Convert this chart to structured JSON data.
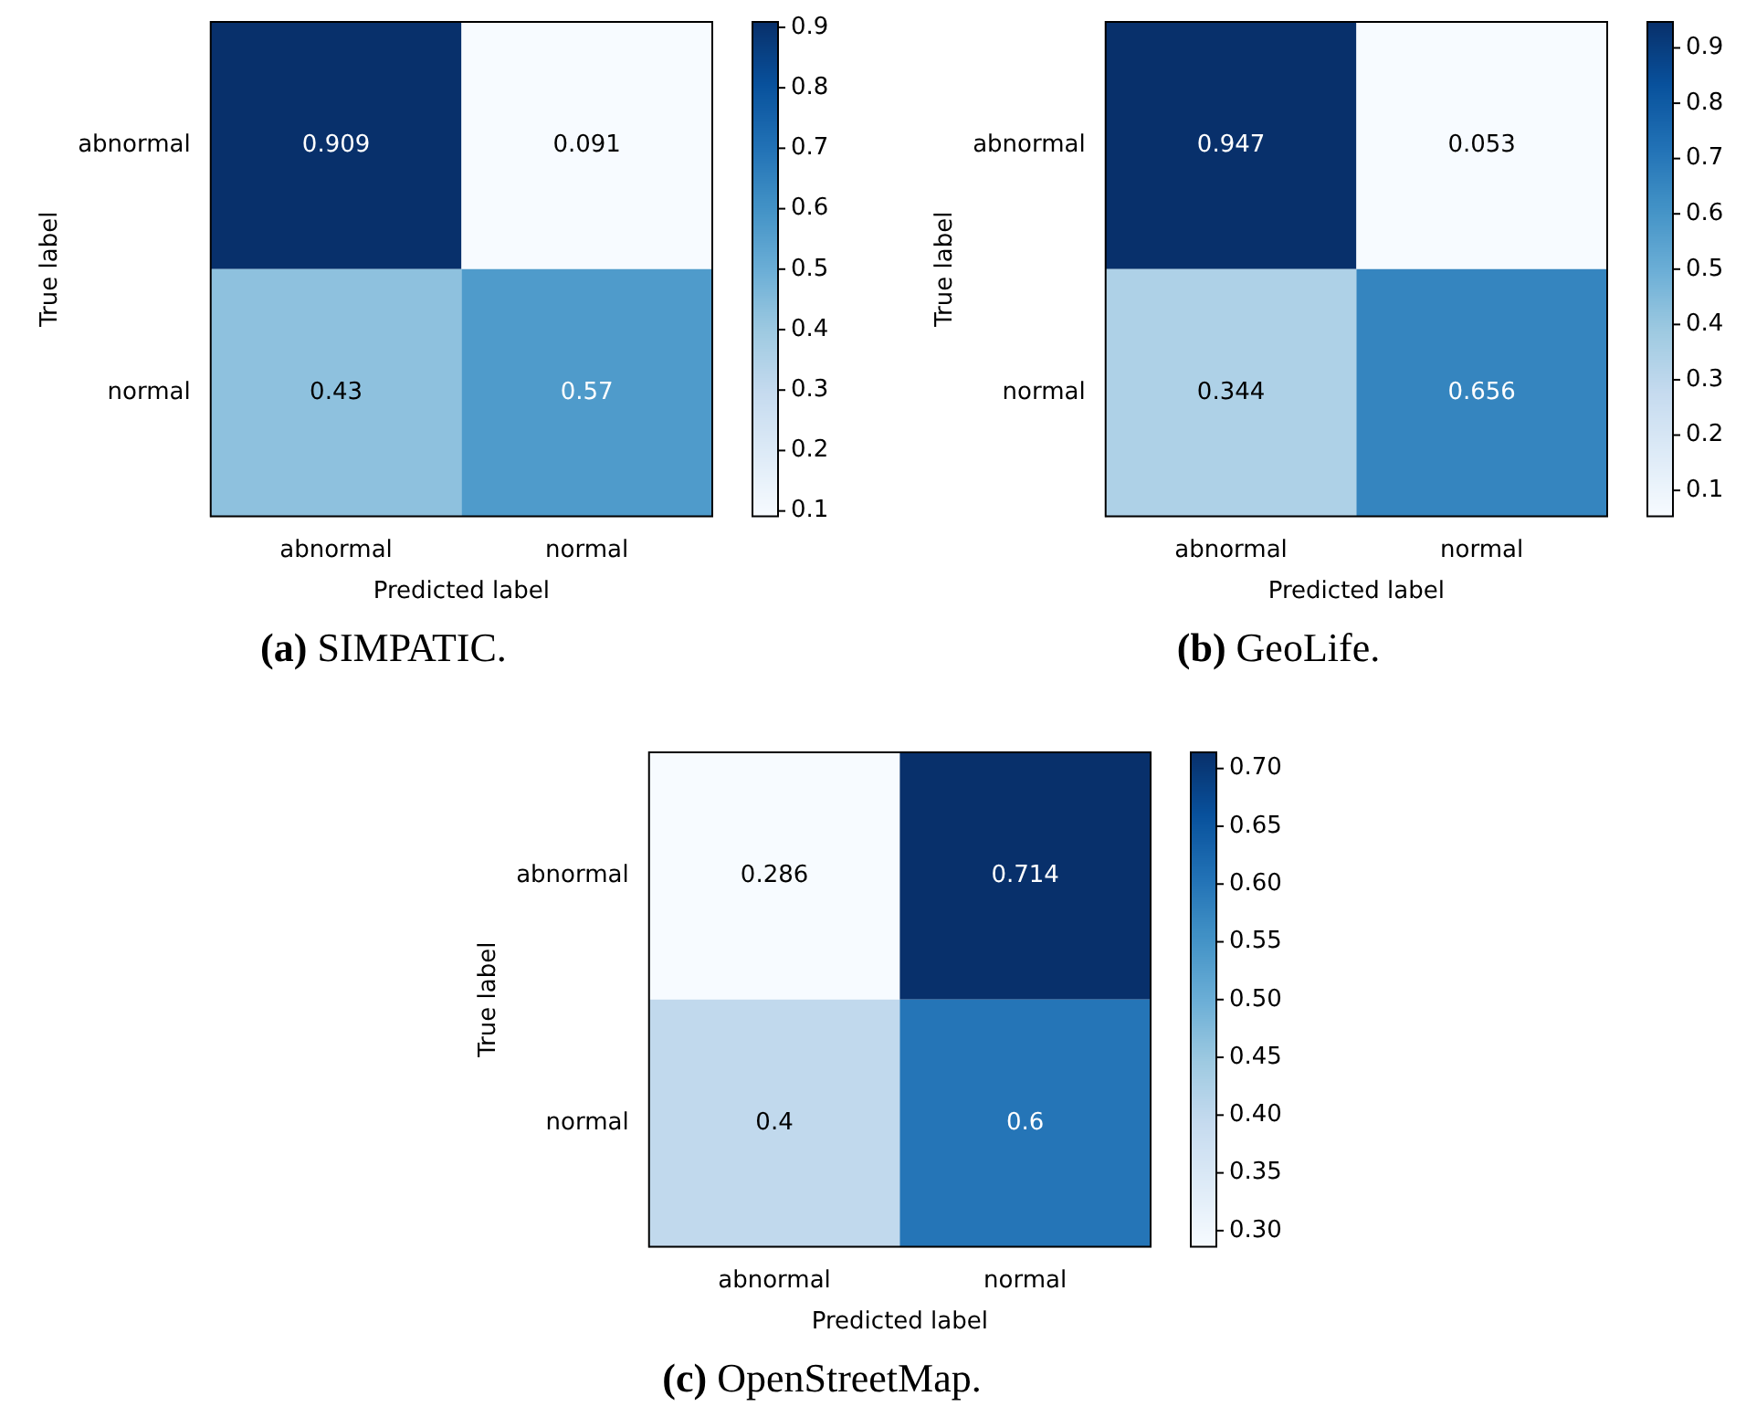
{
  "chart_data": [
    {
      "type": "heatmap",
      "title": "(a) SIMPATIC.",
      "xlabel": "Predicted label",
      "ylabel": "True label",
      "categories": [
        "abnormal",
        "normal"
      ],
      "y_categories": [
        "abnormal",
        "normal"
      ],
      "cells": [
        [
          0.909,
          0.091
        ],
        [
          0.43,
          0.57
        ]
      ],
      "data_labels": true,
      "clim": [
        0.091,
        0.909
      ],
      "cticks": [
        0.1,
        0.2,
        0.3,
        0.4,
        0.5,
        0.6,
        0.7,
        0.8,
        0.9
      ]
    },
    {
      "type": "heatmap",
      "title": "(b) GeoLife.",
      "xlabel": "Predicted label",
      "ylabel": "True label",
      "categories": [
        "abnormal",
        "normal"
      ],
      "y_categories": [
        "abnormal",
        "normal"
      ],
      "cells": [
        [
          0.947,
          0.053
        ],
        [
          0.344,
          0.656
        ]
      ],
      "data_labels": true,
      "clim": [
        0.053,
        0.947
      ],
      "cticks": [
        0.1,
        0.2,
        0.3,
        0.4,
        0.5,
        0.6,
        0.7,
        0.8,
        0.9
      ]
    },
    {
      "type": "heatmap",
      "title": "(c) OpenStreetMap.",
      "xlabel": "Predicted label",
      "ylabel": "True label",
      "categories": [
        "abnormal",
        "normal"
      ],
      "y_categories": [
        "abnormal",
        "normal"
      ],
      "cells": [
        [
          0.286,
          0.714
        ],
        [
          0.4,
          0.6
        ]
      ],
      "data_labels": true,
      "clim": [
        0.286,
        0.714
      ],
      "cticks": [
        {
          "value": 0.3,
          "label": "0.30"
        },
        {
          "value": 0.35,
          "label": "0.35"
        },
        {
          "value": 0.4,
          "label": "0.40"
        },
        {
          "value": 0.45,
          "label": "0.45"
        },
        {
          "value": 0.5,
          "label": "0.50"
        },
        {
          "value": 0.55,
          "label": "0.55"
        },
        {
          "value": 0.6,
          "label": "0.60"
        },
        {
          "value": 0.65,
          "label": "0.65"
        },
        {
          "value": 0.7,
          "label": "0.70"
        }
      ]
    }
  ]
}
